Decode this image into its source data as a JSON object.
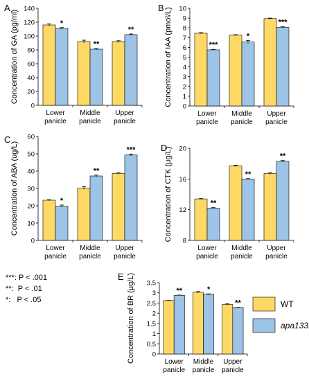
{
  "chart_data": [
    {
      "type": "bar",
      "panel_label": "A",
      "ylabel": "Concentration of GA (pg/ml)",
      "ylim": [
        0,
        140
      ],
      "yticks": [
        "0",
        "20",
        "40",
        "60",
        "80",
        "100",
        "120",
        "140"
      ],
      "categories": [
        "Lower\npanicle",
        "Middle\npanicle",
        "Upper\npanicle"
      ],
      "series": [
        {
          "name": "WT",
          "values": [
            116,
            92,
            92
          ],
          "errors": [
            1.5,
            2,
            1.2
          ],
          "sig": [
            "",
            "",
            ""
          ]
        },
        {
          "name": "apa1331",
          "values": [
            111,
            81,
            102
          ],
          "errors": [
            1.2,
            1,
            1
          ],
          "sig": [
            "*",
            "**",
            "**"
          ]
        }
      ]
    },
    {
      "type": "bar",
      "panel_label": "B",
      "ylabel": "Concentration of IAA (pmol/L)",
      "ylim": [
        0,
        10
      ],
      "yticks": [
        "0",
        "1",
        "2",
        "3",
        "4",
        "5",
        "6",
        "7",
        "8",
        "9",
        "10"
      ],
      "categories": [
        "Lower\npanicle",
        "Middle\npanicle",
        "Upper\npanicle"
      ],
      "series": [
        {
          "name": "WT",
          "values": [
            7.45,
            7.25,
            8.95
          ],
          "errors": [
            0.06,
            0.05,
            0.05
          ],
          "sig": [
            "",
            "",
            ""
          ]
        },
        {
          "name": "apa1331",
          "values": [
            5.75,
            6.55,
            8.05
          ],
          "errors": [
            0.05,
            0.15,
            0.06
          ],
          "sig": [
            "***",
            "*",
            "***"
          ]
        }
      ]
    },
    {
      "type": "bar",
      "panel_label": "C",
      "ylabel": "Concentration of ABA (ug/L)",
      "ylim": [
        0,
        60
      ],
      "yticks": [
        "0",
        "10",
        "20",
        "30",
        "40",
        "50",
        "60"
      ],
      "categories": [
        "Lower\npanicle",
        "Middle\npanicle",
        "Upper\npanicle"
      ],
      "series": [
        {
          "name": "WT",
          "values": [
            23.2,
            30.2,
            38.6
          ],
          "errors": [
            0.3,
            0.8,
            0.4
          ],
          "sig": [
            "",
            "",
            ""
          ]
        },
        {
          "name": "apa1331",
          "values": [
            19.8,
            37.2,
            49.3
          ],
          "errors": [
            0.6,
            0.5,
            0.5
          ],
          "sig": [
            "*",
            "**",
            "***"
          ]
        }
      ]
    },
    {
      "type": "bar",
      "panel_label": "D",
      "ylabel": "Concentration of CTK (μg/L)",
      "ylim": [
        8,
        20
      ],
      "yticks": [
        "8",
        "12",
        "16",
        "20"
      ],
      "categories": [
        "Lower\npanicle",
        "Middle\npanicle",
        "Upper\npanicle"
      ],
      "series": [
        {
          "name": "WT",
          "values": [
            13.4,
            17.7,
            16.7
          ],
          "errors": [
            0.05,
            0.1,
            0.1
          ],
          "sig": [
            "",
            "",
            ""
          ]
        },
        {
          "name": "apa1331",
          "values": [
            12.2,
            16.0,
            18.3
          ],
          "errors": [
            0.1,
            0.05,
            0.1
          ],
          "sig": [
            "**",
            "**",
            "**"
          ]
        }
      ]
    },
    {
      "type": "bar",
      "panel_label": "E",
      "ylabel": "Concentration of BR (μg/L)",
      "ylim": [
        0,
        3.5
      ],
      "yticks": [
        "0",
        "0.5",
        "1",
        "1.5",
        "2",
        "2.5",
        "3",
        "3.5"
      ],
      "categories": [
        "Lower\npanicle",
        "Middle\npanicle",
        "Upper\npanicle"
      ],
      "series": [
        {
          "name": "WT",
          "values": [
            2.62,
            3.03,
            2.43
          ],
          "errors": [
            0.01,
            0.03,
            0.03
          ],
          "sig": [
            "",
            "",
            ""
          ]
        },
        {
          "name": "apa1331",
          "values": [
            2.88,
            2.93,
            2.28
          ],
          "errors": [
            0.01,
            0.02,
            0.01
          ],
          "sig": [
            "**",
            "*",
            "**"
          ]
        }
      ]
    }
  ],
  "legend": {
    "items": [
      {
        "name": "WT",
        "color": "#FFD966"
      },
      {
        "name": "apa1331",
        "color": "#9DC3E6"
      }
    ]
  },
  "significance_notes": [
    "***: P < .001",
    "**:  P < .01",
    "*:   P < .05"
  ]
}
